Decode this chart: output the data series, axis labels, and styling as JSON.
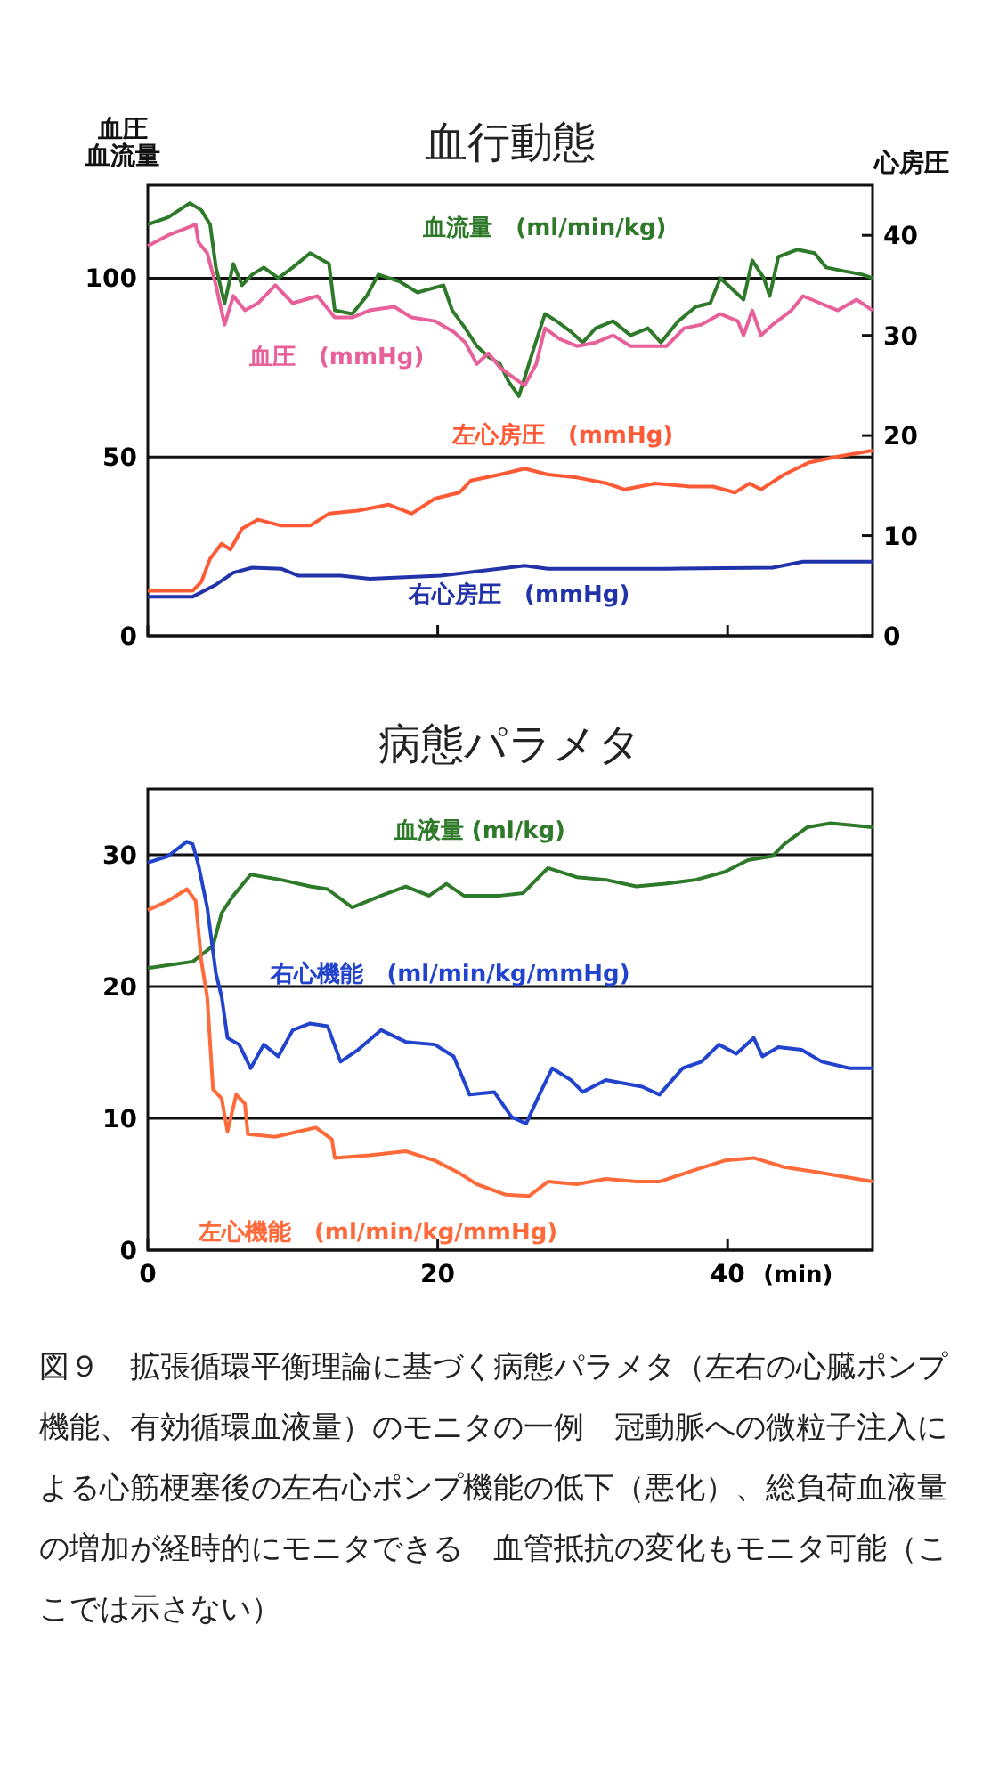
{
  "chart_data": [
    {
      "type": "line",
      "title": "血行動態",
      "ylabel": "血圧血流量",
      "y2label": "心房圧",
      "xlim": [
        0,
        50
      ],
      "xticks": [
        0,
        20,
        40
      ],
      "ylim": [
        0,
        126
      ],
      "yticks": [
        0,
        50,
        100
      ],
      "y2lim": [
        0,
        45
      ],
      "y2ticks": [
        0,
        10,
        20,
        30,
        40
      ],
      "grid": "y",
      "tick_labels": "y",
      "line_style": "solid",
      "series": [
        {
          "name": "血流量　(ml/min/kg)",
          "color": "#2f7a2a",
          "x": [
            0,
            1.4,
            2.9,
            3.7,
            4.3,
            4.7,
            5.3,
            5.9,
            6.5,
            7.2,
            8,
            9,
            10,
            11.2,
            12.5,
            12.9,
            14.1,
            15.1,
            15.9,
            17.4,
            18.6,
            20.4,
            21,
            21.9,
            22.7,
            23.5,
            24.3,
            24.9,
            25.6,
            26.6,
            27.4,
            28.2,
            29.2,
            30,
            30.9,
            32.1,
            33.3,
            34.5,
            35.4,
            36.6,
            37.8,
            38.8,
            39.5,
            40.3,
            41.1,
            41.7,
            42.5,
            42.9,
            43.5,
            44.8,
            46,
            46.8,
            48,
            49.3,
            50
          ],
          "values": [
            115,
            117,
            121,
            119,
            115,
            103,
            93,
            104,
            98,
            101,
            103,
            100,
            103,
            107,
            104,
            91,
            90,
            95,
            101,
            99,
            96,
            98,
            91,
            86,
            81,
            78,
            76,
            71,
            67,
            80,
            90,
            88,
            85,
            82,
            86,
            88,
            84,
            86,
            82,
            88,
            92,
            93,
            100,
            97,
            94,
            105,
            100,
            95,
            106,
            108,
            107,
            103,
            102,
            101,
            100
          ]
        },
        {
          "name": "血圧　(mmHg)",
          "color": "#e8609a",
          "x": [
            0,
            1.4,
            3.3,
            3.5,
            4.1,
            4.7,
            5.3,
            5.9,
            6.7,
            7.6,
            8.8,
            10,
            11.7,
            12.9,
            14.1,
            15.3,
            17,
            18.2,
            19.8,
            21.1,
            21.9,
            22.7,
            23.5,
            24.3,
            25.3,
            26,
            26.8,
            27.4,
            28.4,
            29.6,
            30.9,
            32.1,
            33.3,
            34.5,
            35.8,
            37,
            38.2,
            39.5,
            40.7,
            41.1,
            41.7,
            42.3,
            43.1,
            44.4,
            45.2,
            46.4,
            47.6,
            48.9,
            50
          ],
          "values": [
            109,
            112,
            115,
            110,
            107,
            98,
            87,
            95,
            91,
            93,
            98,
            93,
            95,
            89,
            89,
            91,
            92,
            89,
            88,
            85,
            82,
            76,
            79,
            75,
            72,
            70,
            76,
            86,
            83,
            81,
            82,
            84,
            81,
            81,
            81,
            86,
            87,
            90,
            88,
            84,
            91,
            84,
            87,
            91,
            95,
            93,
            91,
            94,
            91
          ]
        },
        {
          "name": "左心房圧　(mmHg)",
          "color": "#ff5a36",
          "axis": "y2",
          "x": [
            0,
            3.1,
            3.7,
            4.3,
            5.1,
            5.7,
            6.5,
            7.6,
            9.2,
            11.2,
            12.5,
            14.5,
            16.6,
            18.2,
            19.8,
            21.5,
            22.3,
            24.3,
            26,
            27.6,
            29.6,
            31.7,
            32.9,
            35,
            37.4,
            39,
            40.5,
            41.5,
            42.3,
            43.9,
            45.6,
            47.6,
            50
          ],
          "values": [
            4.5,
            4.5,
            5.4,
            7.7,
            9.2,
            8.6,
            10.7,
            11.6,
            11,
            11,
            12.2,
            12.5,
            13.1,
            12.2,
            13.7,
            14.3,
            15.5,
            16.1,
            16.7,
            16.1,
            15.8,
            15.2,
            14.6,
            15.2,
            14.9,
            14.9,
            14.3,
            15.2,
            14.6,
            16.1,
            17.3,
            17.9,
            18.5
          ]
        },
        {
          "name": "右心房圧　(mmHg)",
          "color": "#2233aa",
          "axis": "y2",
          "x": [
            0,
            3.1,
            4.7,
            5.9,
            7.2,
            9.2,
            10.4,
            13.3,
            15.3,
            20.2,
            26,
            27.6,
            35.8,
            43.1,
            45.2,
            50
          ],
          "values": [
            3.9,
            3.9,
            5.1,
            6.3,
            6.8,
            6.7,
            6,
            6,
            5.7,
            6,
            7,
            6.7,
            6.7,
            6.8,
            7.4,
            7.4
          ]
        }
      ]
    },
    {
      "type": "line",
      "title": "病態パラメタ",
      "xlabel": "(min)",
      "xlim": [
        0,
        50
      ],
      "xticks": [
        0,
        20,
        40
      ],
      "ylim": [
        0,
        35
      ],
      "yticks": [
        0,
        10,
        20,
        30
      ],
      "grid": "y",
      "line_style": "solid",
      "annotations": [
        "図９　拡張循環平衡理論に基づく病態パラメタ（左右の心臓ポンプ機能、有効循環血液量）のモニタの一例　冠動脈への微粒子注入による心筋梗塞後の左右心ポンプ機能の低下（悪化）、総負荷血液量の増加が経時的にモニタできる　血管抵抗の変化もモニタ可能（ここでは示さない）"
      ],
      "series": [
        {
          "name": "血液量 (ml/kg)",
          "color": "#2f7a2a",
          "x": [
            0,
            3.1,
            3.7,
            4.5,
            5.1,
            5.9,
            7.1,
            9.2,
            11.2,
            12.4,
            14.1,
            16.1,
            17.8,
            19.4,
            20.6,
            21.8,
            24.3,
            25.9,
            27.6,
            29.6,
            31.6,
            33.7,
            35.7,
            37.8,
            39.8,
            41.4,
            43.1,
            43.9,
            45.5,
            47.1,
            50
          ],
          "values": [
            21.4,
            21.9,
            22.4,
            23.1,
            25.6,
            26.9,
            28.5,
            28.1,
            27.6,
            27.4,
            26,
            26.9,
            27.6,
            26.9,
            27.8,
            26.9,
            26.9,
            27.1,
            29,
            28.3,
            28.1,
            27.6,
            27.8,
            28.1,
            28.7,
            29.6,
            29.9,
            30.8,
            32.1,
            32.4,
            32.1
          ]
        },
        {
          "name": "右心機能　(ml/min/kg/mmHg)",
          "color": "#2244cc",
          "x": [
            0,
            1.4,
            2.7,
            3.1,
            3.5,
            4.1,
            4.7,
            5.1,
            5.5,
            6.3,
            7.1,
            8,
            9,
            10,
            11.2,
            12.4,
            13.3,
            14.5,
            16.1,
            17.8,
            19.8,
            21.1,
            22.2,
            23.9,
            25.1,
            26.1,
            27.1,
            27.9,
            29.2,
            30,
            31.6,
            34.1,
            35.3,
            36.9,
            38.2,
            39.4,
            40.6,
            41.8,
            42.4,
            43.5,
            45.1,
            46.5,
            48.4,
            50
          ],
          "values": [
            29.4,
            29.9,
            31,
            30.8,
            29.2,
            26,
            21,
            19.2,
            16.1,
            15.6,
            13.8,
            15.6,
            14.7,
            16.7,
            17.2,
            17,
            14.3,
            15.2,
            16.7,
            15.8,
            15.6,
            14.7,
            11.8,
            12,
            10.1,
            9.6,
            12,
            13.8,
            12.9,
            12,
            12.9,
            12.4,
            11.8,
            13.8,
            14.3,
            15.6,
            14.9,
            16.1,
            14.7,
            15.4,
            15.2,
            14.3,
            13.8,
            13.8
          ]
        },
        {
          "name": "左心機能　(ml/min/kg/mmHg)",
          "color": "#ff6a3a",
          "x": [
            0,
            1.4,
            2.7,
            3.3,
            3.7,
            4.1,
            4.5,
            5.1,
            5.5,
            6.1,
            6.7,
            6.9,
            8.8,
            10.4,
            11.6,
            12.7,
            12.9,
            15.3,
            17.8,
            19.8,
            21.4,
            22.7,
            24.7,
            26.3,
            27.6,
            29.6,
            31.6,
            33.7,
            35.3,
            37.8,
            39.8,
            41.8,
            43.9,
            46.3,
            50
          ],
          "values": [
            25.8,
            26.5,
            27.4,
            26.5,
            21.9,
            19.2,
            12.2,
            11.5,
            9,
            11.8,
            11.1,
            8.8,
            8.6,
            9,
            9.3,
            8.4,
            7,
            7.2,
            7.5,
            6.8,
            5.9,
            5,
            4.2,
            4.1,
            5.2,
            5,
            5.4,
            5.2,
            5.2,
            6.1,
            6.8,
            7,
            6.3,
            5.9,
            5.2
          ]
        }
      ]
    }
  ]
}
